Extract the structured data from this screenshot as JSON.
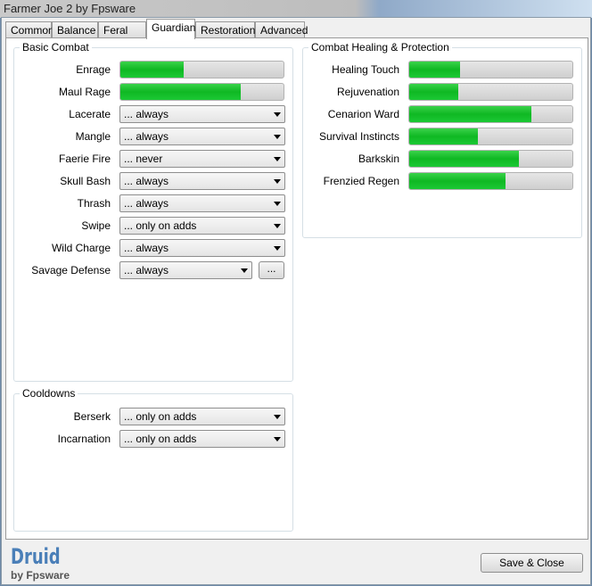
{
  "window": {
    "title": "Farmer Joe 2 by Fpsware"
  },
  "tabs": [
    {
      "label": "Common"
    },
    {
      "label": "Balance"
    },
    {
      "label": "Feral Cat"
    },
    {
      "label": "Guardian",
      "active": true
    },
    {
      "label": "Restoration"
    },
    {
      "label": "Advanced"
    }
  ],
  "basic_combat": {
    "title": "Basic Combat",
    "bars": [
      {
        "label": "Enrage",
        "value_pct": 39
      },
      {
        "label": "Maul Rage",
        "value_pct": 74
      }
    ],
    "dropdowns": [
      {
        "label": "Lacerate",
        "value": "... always"
      },
      {
        "label": "Mangle",
        "value": "... always"
      },
      {
        "label": "Faerie Fire",
        "value": "... never"
      },
      {
        "label": "Skull Bash",
        "value": "... always"
      },
      {
        "label": "Thrash",
        "value": "... always"
      },
      {
        "label": "Swipe",
        "value": "... only on adds"
      },
      {
        "label": "Wild Charge",
        "value": "... always"
      },
      {
        "label": "Savage Defense",
        "value": "... always"
      }
    ],
    "more_button": "..."
  },
  "cooldowns": {
    "title": "Cooldowns",
    "dropdowns": [
      {
        "label": "Berserk",
        "value": "... only on adds"
      },
      {
        "label": "Incarnation",
        "value": "... only on adds"
      }
    ]
  },
  "healing": {
    "title": "Combat Healing & Protection",
    "bars": [
      {
        "label": "Healing Touch",
        "value_pct": 31
      },
      {
        "label": "Rejuvenation",
        "value_pct": 30
      },
      {
        "label": "Cenarion Ward",
        "value_pct": 75
      },
      {
        "label": "Survival Instincts",
        "value_pct": 42
      },
      {
        "label": "Barkskin",
        "value_pct": 67
      },
      {
        "label": "Frenzied Regen",
        "value_pct": 59
      }
    ]
  },
  "footer": {
    "logo": "Druid",
    "logo_sub": "by Fpsware",
    "save_label": "Save & Close"
  },
  "colors": {
    "bar_fill": "#1cc935",
    "logo": "#4a7fb8"
  }
}
